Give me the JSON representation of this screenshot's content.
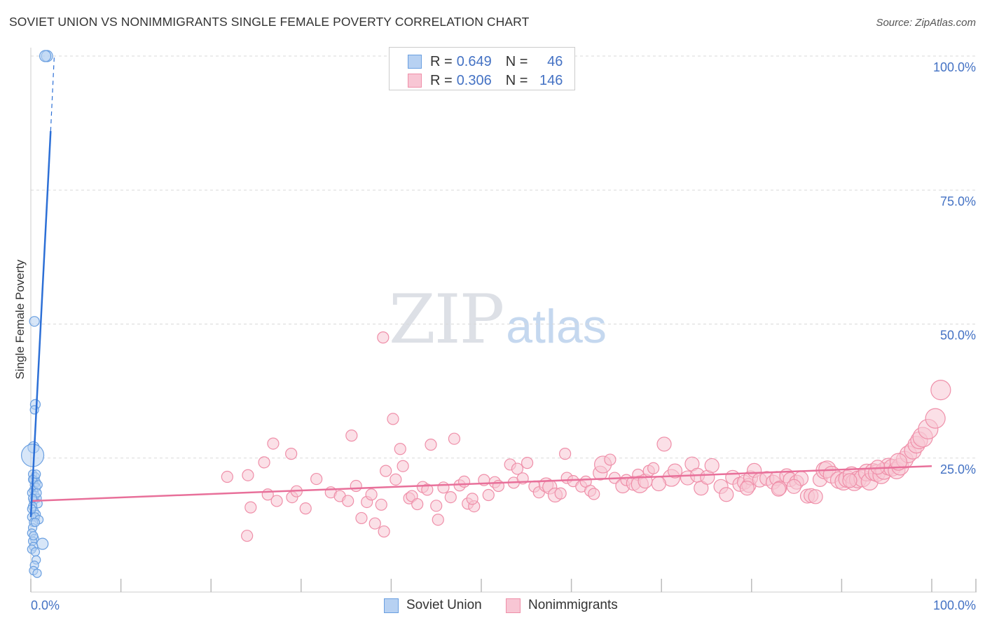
{
  "title": "SOVIET UNION VS NONIMMIGRANTS SINGLE FEMALE POVERTY CORRELATION CHART",
  "source": "Source: ZipAtlas.com",
  "watermark": {
    "zip": "ZIP",
    "atlas": "atlas"
  },
  "legend": {
    "r_label": "R =",
    "n_label": "N =",
    "series": [
      {
        "name": "Soviet Union",
        "r": "0.649",
        "n": "46"
      },
      {
        "name": "Nonimmigrants",
        "r": "0.306",
        "n": "146"
      }
    ]
  },
  "colors": {
    "blue_fill": "#b7d1f2",
    "blue_stroke": "#6a9fe0",
    "blue_line": "#2c6fd6",
    "pink_fill": "#f8c6d4",
    "pink_stroke": "#ef8fa9",
    "pink_line": "#e8709a",
    "axis_text": "#4472c4",
    "grid": "#d9d9d9"
  },
  "chart_data": {
    "type": "scatter",
    "title": "SOVIET UNION VS NONIMMIGRANTS SINGLE FEMALE POVERTY CORRELATION CHART",
    "xlabel": "",
    "ylabel": "Single Female Poverty",
    "xlim": [
      0,
      100
    ],
    "ylim": [
      0,
      100
    ],
    "x_tick_labels": [
      "0.0%",
      "100.0%"
    ],
    "y_ticks": [
      {
        "value": 25,
        "label": "25.0%"
      },
      {
        "value": 50,
        "label": "50.0%"
      },
      {
        "value": 75,
        "label": "75.0%"
      },
      {
        "value": 100,
        "label": "100.0%"
      }
    ],
    "series": [
      {
        "name": "Soviet Union",
        "color": "#b7d1f2",
        "trend": {
          "x0": 0,
          "y0": 14,
          "x1": 2.2,
          "y1": 86,
          "dashed_to": [
            2.6,
            100
          ]
        },
        "points": [
          [
            1.8,
            100,
            8
          ],
          [
            1.6,
            100,
            8
          ],
          [
            0.4,
            50.5,
            7
          ],
          [
            0.5,
            35,
            7
          ],
          [
            0.4,
            34,
            6
          ],
          [
            0.3,
            27,
            8
          ],
          [
            0.2,
            25.5,
            16
          ],
          [
            0.2,
            22,
            6
          ],
          [
            0.3,
            21,
            6
          ],
          [
            0.5,
            21.5,
            6
          ],
          [
            0.6,
            20.5,
            6
          ],
          [
            0.4,
            20,
            6
          ],
          [
            0.6,
            19.5,
            6
          ],
          [
            0.3,
            19,
            6
          ],
          [
            0.1,
            18.5,
            6
          ],
          [
            0.5,
            18,
            6
          ],
          [
            0.7,
            17.5,
            6
          ],
          [
            0.3,
            17,
            6
          ],
          [
            0.8,
            16.5,
            6
          ],
          [
            0.2,
            16,
            6
          ],
          [
            0.4,
            15,
            6
          ],
          [
            0.6,
            14.5,
            6
          ],
          [
            0.1,
            14,
            6
          ],
          [
            0.5,
            14,
            6
          ],
          [
            0.9,
            13.5,
            6
          ],
          [
            0.3,
            13,
            6
          ],
          [
            0.2,
            12,
            6
          ],
          [
            0.1,
            11,
            6
          ],
          [
            0.4,
            10,
            6
          ],
          [
            0.2,
            9.5,
            6
          ],
          [
            1.3,
            9,
            8
          ],
          [
            0.3,
            8.5,
            6
          ],
          [
            0.1,
            8,
            6
          ],
          [
            0.5,
            7.5,
            6
          ],
          [
            0.6,
            6,
            6
          ],
          [
            0.4,
            5,
            6
          ],
          [
            0.3,
            4,
            6
          ],
          [
            0.7,
            3.5,
            6
          ],
          [
            0.2,
            21,
            6
          ],
          [
            0.7,
            18.5,
            6
          ],
          [
            0.1,
            15.5,
            6
          ],
          [
            0.8,
            20,
            6
          ],
          [
            0.5,
            13,
            6
          ],
          [
            0.2,
            17.5,
            6
          ],
          [
            0.6,
            22,
            6
          ],
          [
            0.3,
            10.5,
            6
          ]
        ]
      },
      {
        "name": "Nonimmigrants",
        "color": "#f8c6d4",
        "trend": {
          "x0": 0,
          "y0": 17,
          "x1": 100,
          "y1": 23.5
        },
        "points": [
          [
            21.8,
            21.5,
            8
          ],
          [
            24.1,
            21.8,
            8
          ],
          [
            25.9,
            24.2,
            8
          ],
          [
            26.9,
            27.7,
            8
          ],
          [
            28.9,
            25.8,
            8
          ],
          [
            24.4,
            15.8,
            8
          ],
          [
            26.3,
            18.2,
            8
          ],
          [
            27.3,
            17.0,
            8
          ],
          [
            29.0,
            17.7,
            8
          ],
          [
            29.5,
            18.8,
            8
          ],
          [
            30.5,
            15.6,
            8
          ],
          [
            31.7,
            21.1,
            8
          ],
          [
            24.0,
            10.5,
            8
          ],
          [
            33.3,
            18.6,
            8
          ],
          [
            34.3,
            17.9,
            8
          ],
          [
            35.2,
            17.0,
            8
          ],
          [
            35.6,
            29.2,
            8
          ],
          [
            36.1,
            19.8,
            8
          ],
          [
            36.7,
            13.8,
            8
          ],
          [
            37.3,
            16.8,
            8
          ],
          [
            37.8,
            18.2,
            8
          ],
          [
            38.2,
            12.8,
            8
          ],
          [
            38.9,
            16.3,
            8
          ],
          [
            39.2,
            11.3,
            8
          ],
          [
            39.4,
            22.6,
            8
          ],
          [
            39.1,
            47.5,
            8
          ],
          [
            40.2,
            32.3,
            8
          ],
          [
            40.5,
            21.0,
            8
          ],
          [
            41.0,
            26.7,
            8
          ],
          [
            41.3,
            23.5,
            8
          ],
          [
            42.0,
            17.5,
            8
          ],
          [
            42.3,
            17.9,
            8
          ],
          [
            42.9,
            16.4,
            8
          ],
          [
            43.5,
            19.6,
            8
          ],
          [
            44.0,
            19.1,
            8
          ],
          [
            44.4,
            27.5,
            8
          ],
          [
            45.0,
            16.1,
            8
          ],
          [
            45.2,
            13.5,
            8
          ],
          [
            45.8,
            19.5,
            8
          ],
          [
            47.0,
            28.6,
            8
          ],
          [
            46.6,
            17.7,
            8
          ],
          [
            47.6,
            19.9,
            8
          ],
          [
            48.1,
            20.6,
            8
          ],
          [
            48.5,
            16.5,
            8
          ],
          [
            49.2,
            16.0,
            8
          ],
          [
            49.0,
            17.4,
            8
          ],
          [
            50.3,
            20.9,
            8
          ],
          [
            50.8,
            18.1,
            8
          ],
          [
            51.5,
            20.5,
            8
          ],
          [
            51.9,
            19.8,
            8
          ],
          [
            53.2,
            23.8,
            8
          ],
          [
            53.6,
            20.4,
            8
          ],
          [
            54.0,
            23.0,
            8
          ],
          [
            54.6,
            21.2,
            8
          ],
          [
            55.1,
            24.1,
            8
          ],
          [
            55.9,
            19.7,
            8
          ],
          [
            56.4,
            18.6,
            8
          ],
          [
            57.2,
            20.0,
            10
          ],
          [
            57.6,
            19.6,
            10
          ],
          [
            58.2,
            18.1,
            10
          ],
          [
            58.8,
            18.4,
            8
          ],
          [
            59.3,
            25.8,
            8
          ],
          [
            59.5,
            21.3,
            8
          ],
          [
            60.2,
            20.7,
            8
          ],
          [
            61.1,
            19.7,
            8
          ],
          [
            61.6,
            20.6,
            8
          ],
          [
            62.1,
            18.9,
            8
          ],
          [
            62.5,
            18.3,
            8
          ],
          [
            63.2,
            22.2,
            10
          ],
          [
            63.5,
            23.8,
            12
          ],
          [
            64.3,
            24.7,
            8
          ],
          [
            64.8,
            21.3,
            8
          ],
          [
            65.7,
            19.8,
            10
          ],
          [
            66.1,
            20.9,
            8
          ],
          [
            66.9,
            20.3,
            10
          ],
          [
            67.4,
            21.9,
            8
          ],
          [
            67.6,
            20.1,
            12
          ],
          [
            68.2,
            20.7,
            10
          ],
          [
            68.6,
            22.6,
            8
          ],
          [
            69.1,
            23.1,
            8
          ],
          [
            71.1,
            21.3,
            12
          ],
          [
            71.5,
            22.6,
            10
          ],
          [
            72.9,
            21.3,
            10
          ],
          [
            73.4,
            23.9,
            10
          ],
          [
            74.0,
            21.8,
            10
          ],
          [
            74.4,
            19.4,
            10
          ],
          [
            75.1,
            21.4,
            10
          ],
          [
            75.6,
            23.6,
            10
          ],
          [
            76.6,
            19.7,
            10
          ],
          [
            77.2,
            18.2,
            10
          ],
          [
            77.9,
            21.4,
            10
          ],
          [
            78.7,
            20.1,
            10
          ],
          [
            79.2,
            20.5,
            10
          ],
          [
            79.7,
            19.9,
            10
          ],
          [
            79.9,
            21.3,
            10
          ],
          [
            80.3,
            22.7,
            10
          ],
          [
            80.9,
            20.9,
            10
          ],
          [
            81.7,
            21.2,
            10
          ],
          [
            82.4,
            20.5,
            10
          ],
          [
            82.8,
            21.2,
            10
          ],
          [
            83.1,
            19.4,
            10
          ],
          [
            83.9,
            21.7,
            10
          ],
          [
            84.3,
            21.0,
            10
          ],
          [
            85.0,
            20.5,
            10
          ],
          [
            85.5,
            21.2,
            10
          ],
          [
            86.2,
            17.9,
            10
          ],
          [
            86.6,
            18.0,
            10
          ],
          [
            87.1,
            17.8,
            10
          ],
          [
            87.6,
            21.0,
            10
          ],
          [
            88.1,
            22.7,
            12
          ],
          [
            88.4,
            22.9,
            12
          ],
          [
            88.9,
            21.9,
            12
          ],
          [
            89.7,
            20.9,
            12
          ],
          [
            90.2,
            20.6,
            12
          ],
          [
            90.6,
            21.1,
            12
          ],
          [
            91.1,
            21.8,
            12
          ],
          [
            91.4,
            20.5,
            12
          ],
          [
            91.8,
            21.0,
            12
          ],
          [
            92.3,
            21.2,
            12
          ],
          [
            92.8,
            22.3,
            12
          ],
          [
            93.1,
            20.6,
            12
          ],
          [
            93.5,
            22.4,
            12
          ],
          [
            93.9,
            22.2,
            12
          ],
          [
            94.4,
            21.8,
            12
          ],
          [
            94.7,
            22.6,
            12
          ],
          [
            95.2,
            23.4,
            12
          ],
          [
            95.6,
            23.2,
            12
          ],
          [
            96.1,
            22.7,
            12
          ],
          [
            96.5,
            23.4,
            12
          ],
          [
            97.0,
            24.7,
            12
          ],
          [
            97.4,
            25.7,
            12
          ],
          [
            97.9,
            26.4,
            12
          ],
          [
            98.3,
            27.5,
            12
          ],
          [
            98.6,
            28.3,
            12
          ],
          [
            99.0,
            28.9,
            14
          ],
          [
            99.6,
            30.4,
            14
          ],
          [
            100.4,
            32.4,
            14
          ],
          [
            101.0,
            37.7,
            14
          ],
          [
            90.9,
            20.8,
            10
          ],
          [
            96.3,
            24.3,
            12
          ],
          [
            84.7,
            19.7,
            10
          ],
          [
            79.5,
            19.4,
            10
          ],
          [
            69.7,
            20.2,
            10
          ],
          [
            70.3,
            27.6,
            10
          ],
          [
            83.0,
            19.2,
            10
          ],
          [
            94.0,
            23.3,
            10
          ]
        ]
      }
    ]
  }
}
